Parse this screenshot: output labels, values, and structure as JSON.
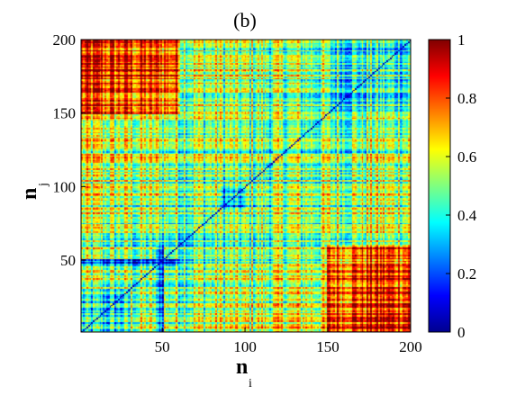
{
  "chart_data": {
    "type": "heatmap",
    "title": "(b)",
    "xlabel": {
      "main": "n",
      "sub": "i"
    },
    "ylabel": {
      "main": "n",
      "sub": "j"
    },
    "xlim": [
      1,
      200
    ],
    "ylim": [
      1,
      200
    ],
    "xticks": [
      "50",
      "100",
      "150",
      "200"
    ],
    "yticks": [
      "50",
      "100",
      "150",
      "200"
    ],
    "colorbar": {
      "range": [
        0,
        1
      ],
      "ticks": [
        "0",
        "0.2",
        "0.4",
        "0.6",
        "0.8",
        "1"
      ],
      "colormap": "jet"
    },
    "grid": false,
    "matrix": {
      "size": 200,
      "diagonal_value": 0.05,
      "symmetric": true,
      "description_blocks": [
        {
          "i_range": [
            150,
            200
          ],
          "j_range": [
            1,
            60
          ],
          "level": 0.88
        },
        {
          "i_range": [
            1,
            60
          ],
          "j_range": [
            150,
            200
          ],
          "level": 0.88
        },
        {
          "i_range": [
            1,
            30
          ],
          "j_range": [
            1,
            30
          ],
          "level": 0.35
        },
        {
          "i_range": [
            150,
            200
          ],
          "j_range": [
            150,
            200
          ],
          "level": 0.45
        },
        {
          "i_range": [
            85,
            100
          ],
          "j_range": [
            85,
            100
          ],
          "level": 0.3
        }
      ]
    }
  }
}
